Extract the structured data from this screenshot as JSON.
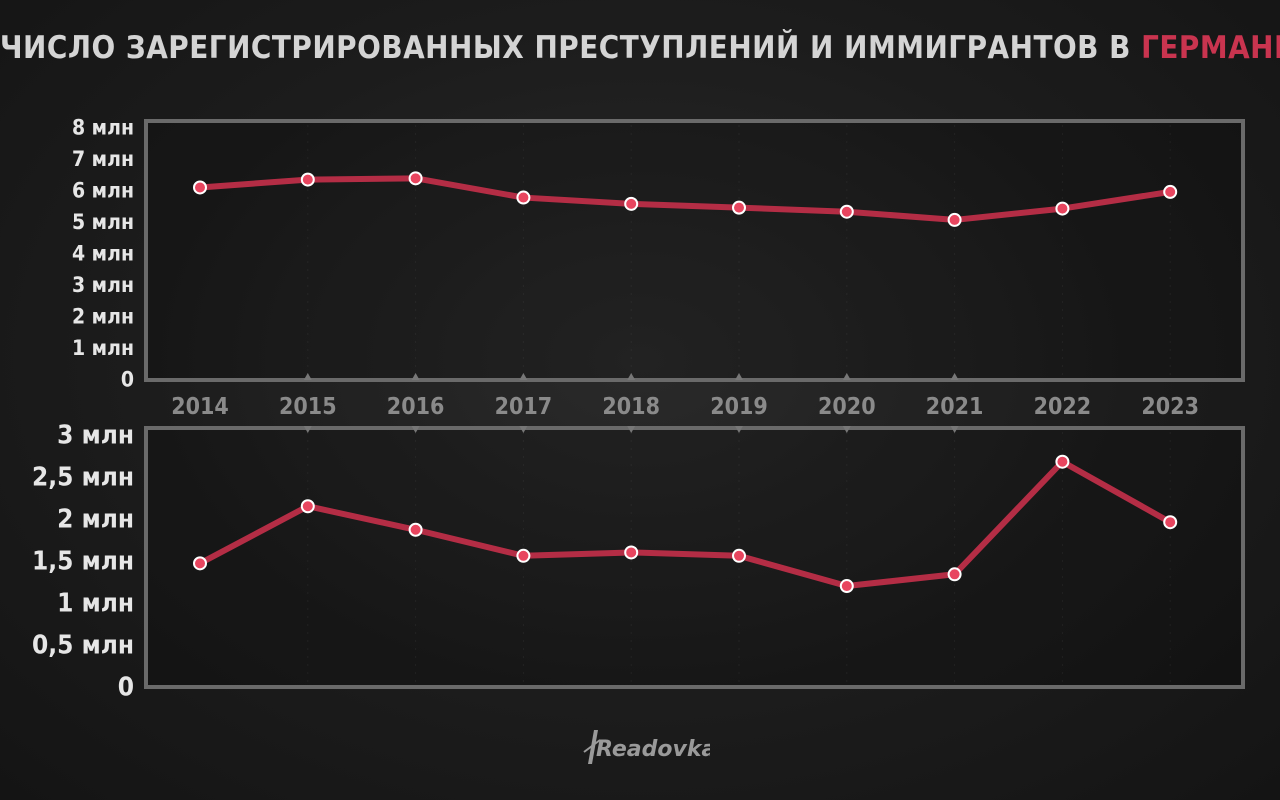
{
  "title": {
    "main": "ЧИСЛО ЗАРЕГИСТРИРОВАННЫХ ПРЕСТУПЛЕНИЙ И ИММИГРАНТОВ В",
    "accent": "ГЕРМАНИИ"
  },
  "colors": {
    "line": "#b42d45",
    "point_fill": "#e8455f",
    "point_stroke": "#ffffff",
    "frame": "#6a6a6a",
    "tick_text": "#e6e6e6",
    "year_text": "#8a8a8a",
    "accent": "#c9344f"
  },
  "logo_text": "Readovka",
  "chart_data": [
    {
      "type": "line",
      "x": [
        "2014",
        "2015",
        "2016",
        "2017",
        "2018",
        "2019",
        "2020",
        "2021",
        "2022",
        "2023"
      ],
      "series": [
        {
          "values": [
            6.08,
            6.33,
            6.37,
            5.76,
            5.56,
            5.44,
            5.31,
            5.05,
            5.41,
            5.94
          ]
        }
      ],
      "ylim": [
        0,
        8
      ],
      "yticks": [
        0,
        1,
        2,
        3,
        4,
        5,
        6,
        7,
        8
      ],
      "ytick_labels": [
        "0",
        "1 млн",
        "2 млн",
        "3 млн",
        "4 млн",
        "5 млн",
        "6 млн",
        "7 млн",
        "8 млн"
      ],
      "xtick_labels": [
        "2014",
        "2015",
        "2016",
        "2017",
        "2018",
        "2019",
        "2020",
        "2021",
        "2022",
        "2023"
      ]
    },
    {
      "type": "line",
      "x": [
        "2014",
        "2015",
        "2016",
        "2017",
        "2018",
        "2019",
        "2020",
        "2021",
        "2022",
        "2023"
      ],
      "series": [
        {
          "values": [
            1.46,
            2.14,
            1.86,
            1.55,
            1.59,
            1.55,
            1.19,
            1.33,
            2.67,
            1.95
          ]
        }
      ],
      "ylim": [
        0,
        3
      ],
      "yticks": [
        0,
        0.5,
        1,
        1.5,
        2,
        2.5,
        3
      ],
      "ytick_labels": [
        "0",
        "0,5 млн",
        "1 млн",
        "1,5 млн",
        "2 млн",
        "2,5 млн",
        "3 млн"
      ]
    }
  ]
}
